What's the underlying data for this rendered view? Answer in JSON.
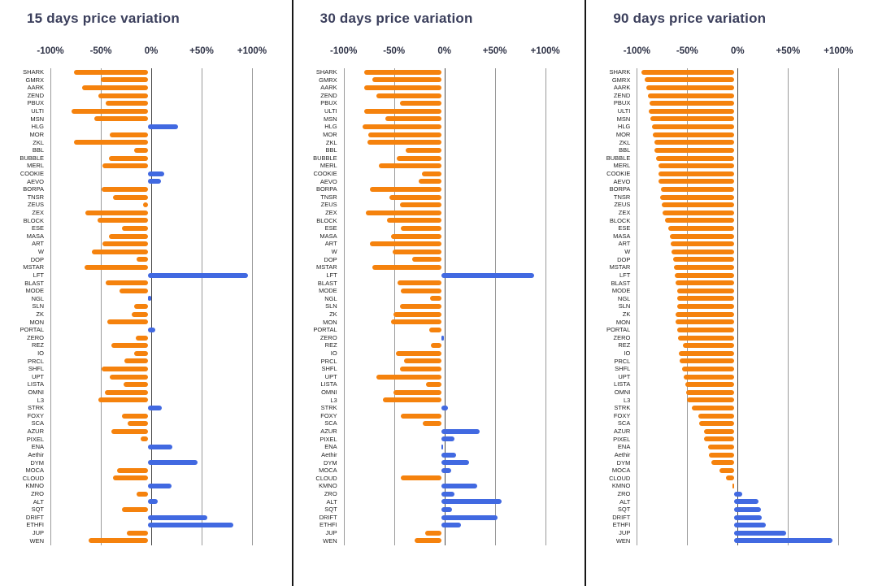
{
  "colors": {
    "negative_bar": "#F5820D",
    "positive_bar": "#4169E1",
    "title_text": "#3B3F5C",
    "tick_text": "#2E3246",
    "ticker_text": "#1F1F1F",
    "gridline": "#9A9A9A",
    "zero_line": "#4A4A4A",
    "panel_divider": "#161616",
    "background": "#FFFFFF"
  },
  "chart_data": [
    {
      "type": "bar",
      "orientation": "horizontal",
      "title": "15 days price variation",
      "xlabel": "price variation (%)",
      "xlim": [
        -100,
        100
      ],
      "xticks": [
        "-100%",
        "-50%",
        "0%",
        "+50%",
        "+100%"
      ],
      "grid": true,
      "categories": [
        "SHARK",
        "GMRX",
        "AARK",
        "ZEND",
        "PBUX",
        "ULTI",
        "MSN",
        "HLG",
        "MOR",
        "ZKL",
        "BBL",
        "BUBBLE",
        "MERL",
        "COOKIE",
        "AEVO",
        "BORPA",
        "TNSR",
        "ZEUS",
        "ZEX",
        "BLOCK",
        "ESE",
        "MASA",
        "ART",
        "W",
        "DOP",
        "MSTAR",
        "LFT",
        "BLAST",
        "MODE",
        "NGL",
        "SLN",
        "ZK",
        "MON",
        "PORTAL",
        "ZERO",
        "REZ",
        "IO",
        "PRCL",
        "SHFL",
        "UPT",
        "LISTA",
        "OMNI",
        "L3",
        "STRK",
        "FOXY",
        "SCA",
        "AZUR",
        "PIXEL",
        "ENA",
        "Aethir",
        "DYM",
        "MOCA",
        "CLOUD",
        "KMNO",
        "ZRO",
        "ALT",
        "SQT",
        "DRIFT",
        "ETHFI",
        "JUP",
        "WEN"
      ],
      "values": [
        -73,
        -47,
        -65,
        -49,
        -42,
        -76,
        -53,
        30,
        -38,
        -73,
        -14,
        -39,
        -45,
        16,
        13,
        -46,
        -35,
        -5,
        -62,
        -50,
        -26,
        -39,
        -45,
        -56,
        -11,
        -63,
        99,
        -42,
        -28,
        3,
        -14,
        -16,
        -40,
        7,
        -12,
        -36,
        -14,
        -23,
        -46,
        -38,
        -24,
        -43,
        -49,
        14,
        -26,
        -20,
        -36,
        -7,
        24,
        0,
        49,
        -31,
        -35,
        23,
        -11,
        10,
        -26,
        59,
        85,
        -21,
        -59
      ]
    },
    {
      "type": "bar",
      "orientation": "horizontal",
      "title": "30 days price variation",
      "xlabel": "price variation (%)",
      "xlim": [
        -100,
        100
      ],
      "xticks": [
        "-100%",
        "-50%",
        "0%",
        "+50%",
        "+100%"
      ],
      "grid": true,
      "categories": [
        "SHARK",
        "GMRX",
        "AARK",
        "ZEND",
        "PBUX",
        "ULTI",
        "MSN",
        "HLG",
        "MOR",
        "ZKL",
        "BBL",
        "BUBBLE",
        "MERL",
        "COOKIE",
        "AEVO",
        "BORPA",
        "TNSR",
        "ZEUS",
        "ZEX",
        "BLOCK",
        "ESE",
        "MASA",
        "ART",
        "W",
        "DOP",
        "MSTAR",
        "LFT",
        "BLAST",
        "MODE",
        "NGL",
        "SLN",
        "ZK",
        "MON",
        "PORTAL",
        "ZERO",
        "REZ",
        "IO",
        "PRCL",
        "SHFL",
        "UPT",
        "LISTA",
        "OMNI",
        "L3",
        "STRK",
        "FOXY",
        "SCA",
        "AZUR",
        "PIXEL",
        "ENA",
        "Aethir",
        "DYM",
        "MOCA",
        "CLOUD",
        "KMNO",
        "ZRO",
        "ALT",
        "SQT",
        "DRIFT",
        "ETHFI",
        "JUP",
        "WEN"
      ],
      "values": [
        -76,
        -68,
        -76,
        -64,
        -41,
        -76,
        -55,
        -78,
        -72,
        -73,
        -35,
        -44,
        -62,
        -19,
        -22,
        -71,
        -51,
        -41,
        -75,
        -54,
        -40,
        -50,
        -71,
        -48,
        -29,
        -68,
        92,
        -43,
        -40,
        -11,
        -41,
        -47,
        -50,
        -12,
        3,
        -10,
        -45,
        -37,
        -41,
        -64,
        -15,
        -47,
        -58,
        7,
        -40,
        -18,
        38,
        13,
        2,
        15,
        28,
        10,
        -40,
        36,
        13,
        60,
        11,
        56,
        20,
        -16,
        -26
      ]
    },
    {
      "type": "bar",
      "orientation": "horizontal",
      "title": "90 days price variation",
      "xlabel": "price variation (%)",
      "xlim": [
        -100,
        100
      ],
      "xticks": [
        "-100%",
        "-50%",
        "0%",
        "+50%",
        "+100%"
      ],
      "grid": true,
      "categories": [
        "SHARK",
        "GMRX",
        "AARK",
        "ZEND",
        "PBUX",
        "ULTI",
        "MSN",
        "HLG",
        "MOR",
        "ZKL",
        "BBL",
        "BUBBLE",
        "MERL",
        "COOKIE",
        "AEVO",
        "BORPA",
        "TNSR",
        "ZEUS",
        "ZEX",
        "BLOCK",
        "ESE",
        "MASA",
        "ART",
        "W",
        "DOP",
        "MSTAR",
        "LFT",
        "BLAST",
        "MODE",
        "NGL",
        "SLN",
        "ZK",
        "MON",
        "PORTAL",
        "ZERO",
        "REZ",
        "IO",
        "PRCL",
        "SHFL",
        "UPT",
        "LISTA",
        "OMNI",
        "L3",
        "STRK",
        "FOXY",
        "SCA",
        "AZUR",
        "PIXEL",
        "ENA",
        "Aethir",
        "DYM",
        "MOCA",
        "CLOUD",
        "KMNO",
        "ZRO",
        "ALT",
        "SQT",
        "DRIFT",
        "ETHFI",
        "JUP",
        "WEN"
      ],
      "values": [
        -92,
        -89,
        -87,
        -86,
        -84,
        -85,
        -83,
        -82,
        -81,
        -79,
        -79,
        -78,
        -75,
        -75,
        -75,
        -73,
        -74,
        -72,
        -71,
        -69,
        -66,
        -64,
        -63,
        -62,
        -61,
        -60,
        -59,
        -58,
        -57,
        -57,
        -57,
        -58,
        -58,
        -57,
        -56,
        -51,
        -55,
        -54,
        -52,
        -50,
        -49,
        -48,
        -47,
        -42,
        -36,
        -35,
        -30,
        -30,
        -26,
        -25,
        -23,
        -15,
        -8,
        -2,
        8,
        24,
        26,
        27,
        31,
        51,
        97
      ]
    }
  ]
}
